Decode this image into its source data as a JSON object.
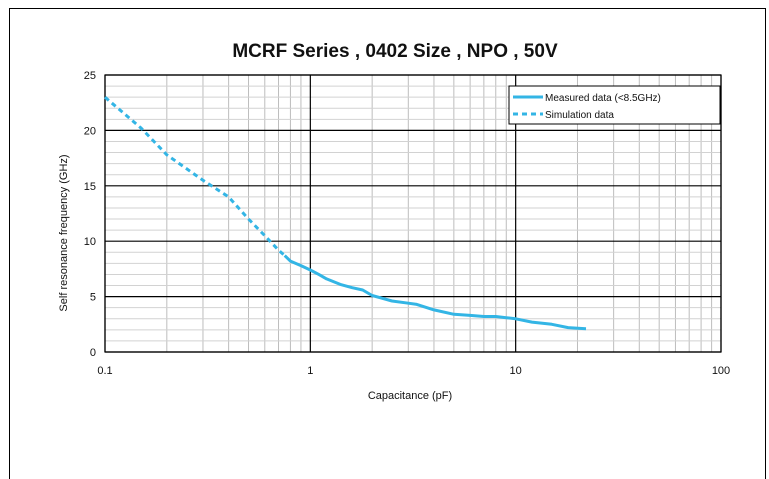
{
  "chart_data": {
    "type": "line",
    "title": "MCRF Series , 0402 Size , NPO , 50V",
    "xlabel": "Capacitance (pF)",
    "ylabel": "Self resonance frequency (GHz)",
    "x_scale": "log",
    "xlim": [
      0.1,
      100
    ],
    "ylim": [
      0,
      25
    ],
    "x_ticks": [
      {
        "value": 0.1,
        "label": "0.1"
      },
      {
        "value": 1,
        "label": "1"
      },
      {
        "value": 10,
        "label": "10"
      },
      {
        "value": 100,
        "label": "100"
      }
    ],
    "y_ticks": [
      {
        "value": 0,
        "label": "0"
      },
      {
        "value": 5,
        "label": "5"
      },
      {
        "value": 10,
        "label": "10"
      },
      {
        "value": 15,
        "label": "15"
      },
      {
        "value": 20,
        "label": "20"
      },
      {
        "value": 25,
        "label": "25"
      }
    ],
    "grid": true,
    "legend_position": "top-right",
    "series": [
      {
        "name": "Measured data (<8.5GHz)",
        "color": "#33b5e5",
        "style": "solid",
        "x": [
          0.75,
          0.8,
          0.9,
          1.0,
          1.1,
          1.2,
          1.4,
          1.6,
          1.8,
          2.0,
          2.5,
          3.0,
          3.3,
          4.0,
          5.0,
          6.0,
          7.0,
          8.0,
          9.0,
          10.0,
          12.0,
          15.0,
          18.0,
          22.0
        ],
        "y": [
          8.7,
          8.2,
          7.8,
          7.4,
          7.0,
          6.6,
          6.1,
          5.8,
          5.6,
          5.1,
          4.6,
          4.4,
          4.3,
          3.8,
          3.4,
          3.3,
          3.2,
          3.2,
          3.1,
          3.0,
          2.7,
          2.5,
          2.2,
          2.1
        ]
      },
      {
        "name": "Simulation data",
        "color": "#33b5e5",
        "style": "dashed",
        "x": [
          0.1,
          0.15,
          0.2,
          0.3,
          0.4,
          0.5,
          0.6,
          0.7,
          0.75
        ],
        "y": [
          23.0,
          20.2,
          17.8,
          15.5,
          14.0,
          12.0,
          10.5,
          9.2,
          8.7
        ]
      }
    ]
  }
}
